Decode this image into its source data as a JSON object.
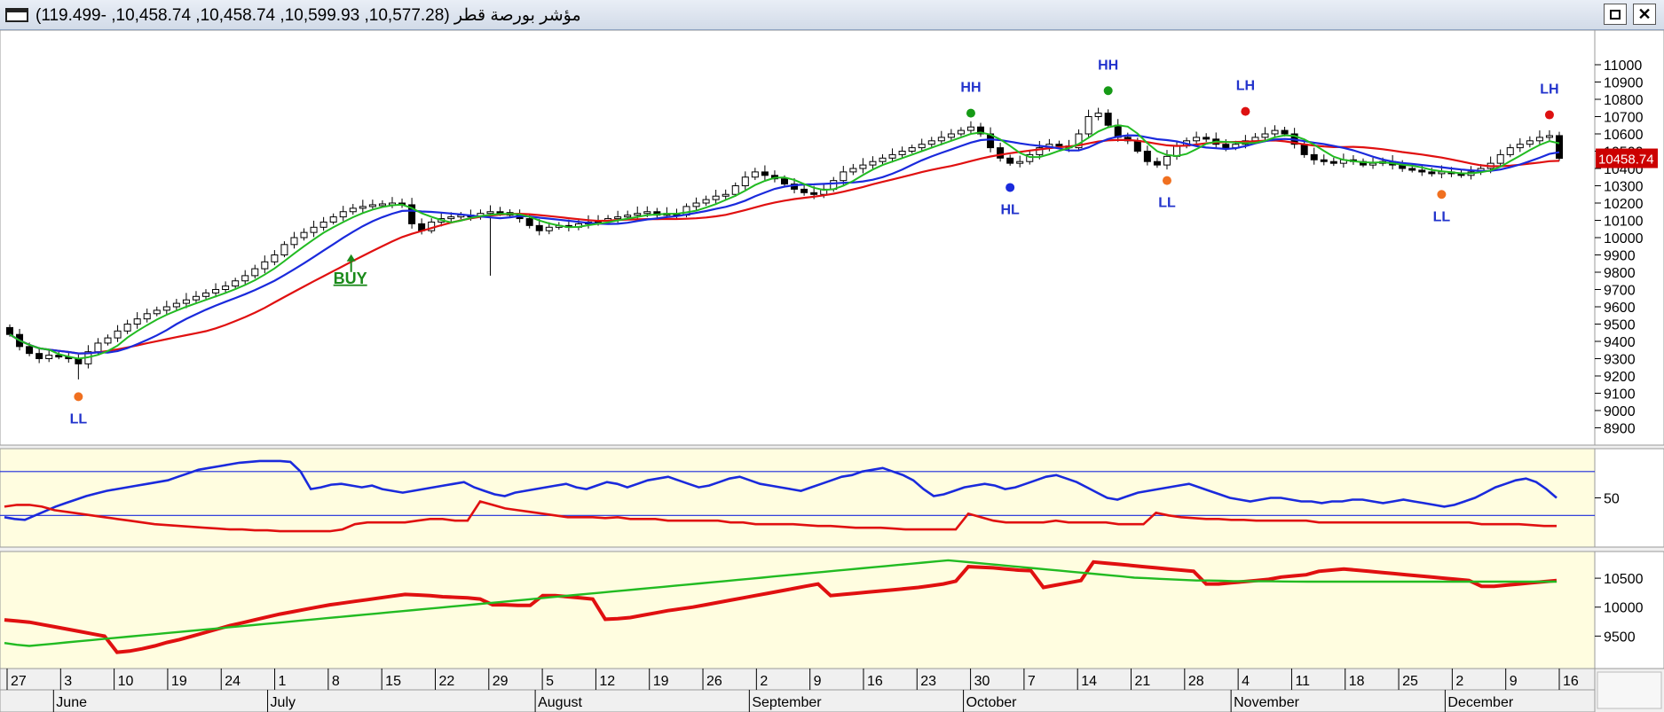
{
  "window": {
    "title": "مؤشر بورصة قطر (10,577.28, 10,599.93, 10,458.74, 10,458.74, -119.499)",
    "restore_label": "",
    "close_label": "✕"
  },
  "colors": {
    "price_panel_bg": "#ffffff",
    "indicator_panel_bg": "#fffde0",
    "ma_fast": "#22bb22",
    "ma_mid": "#1a2adc",
    "ma_slow": "#e01010",
    "label_blue": "#2233cc",
    "last_price_box": "#cc0000"
  },
  "chart_data": [
    {
      "type": "candlestick",
      "ylim": [
        8800,
        11200
      ],
      "yticks": [
        8900,
        9000,
        9100,
        9200,
        9300,
        9400,
        9500,
        9600,
        9700,
        9800,
        9900,
        10000,
        10100,
        10200,
        10300,
        10400,
        10500,
        10600,
        10700,
        10800,
        10900,
        11000
      ],
      "last_price_label": "10458.74",
      "last_price": 10458.74,
      "x_ticks": [
        "27",
        "3",
        "10",
        "19",
        "24",
        "1",
        "8",
        "15",
        "22",
        "29",
        "5",
        "12",
        "19",
        "26",
        "2",
        "9",
        "16",
        "23",
        "30",
        "7",
        "14",
        "21",
        "28",
        "4",
        "11",
        "18",
        "25",
        "2",
        "9",
        "16"
      ],
      "months": [
        "June",
        "July",
        "August",
        "September",
        "October",
        "November",
        "December"
      ],
      "close": [
        9440,
        9370,
        9330,
        9300,
        9320,
        9310,
        9300,
        9270,
        9340,
        9390,
        9420,
        9460,
        9500,
        9530,
        9560,
        9580,
        9600,
        9620,
        9640,
        9660,
        9680,
        9700,
        9720,
        9750,
        9780,
        9820,
        9860,
        9900,
        9960,
        10000,
        10030,
        10060,
        10090,
        10120,
        10150,
        10170,
        10180,
        10190,
        10195,
        10200,
        10190,
        10080,
        10040,
        10090,
        10110,
        10120,
        10130,
        10120,
        10140,
        10150,
        10145,
        10130,
        10110,
        10070,
        10040,
        10060,
        10070,
        10060,
        10080,
        10090,
        10100,
        10110,
        10120,
        10130,
        10140,
        10150,
        10130,
        10140,
        10130,
        10180,
        10200,
        10220,
        10240,
        10250,
        10300,
        10350,
        10380,
        10360,
        10340,
        10310,
        10280,
        10260,
        10250,
        10280,
        10330,
        10380,
        10400,
        10420,
        10440,
        10460,
        10480,
        10500,
        10520,
        10540,
        10560,
        10580,
        10600,
        10620,
        10640,
        10600,
        10520,
        10460,
        10430,
        10440,
        10480,
        10520,
        10540,
        10530,
        10520,
        10600,
        10700,
        10720,
        10650,
        10580,
        10560,
        10500,
        10440,
        10420,
        10470,
        10530,
        10560,
        10580,
        10570,
        10540,
        10520,
        10540,
        10560,
        10580,
        10600,
        10620,
        10600,
        10540,
        10480,
        10450,
        10440,
        10430,
        10450,
        10440,
        10420,
        10430,
        10440,
        10420,
        10400,
        10390,
        10380,
        10370,
        10380,
        10370,
        10360,
        10380,
        10400,
        10430,
        10480,
        10520,
        10540,
        10560,
        10580,
        10590,
        10458.74
      ],
      "annotations": [
        {
          "text": "LL",
          "kind": "low",
          "dot_color": "#f07020",
          "index": 7,
          "price": 9080
        },
        {
          "text": "BUY",
          "kind": "signal",
          "color": "#1a8a1a",
          "index": 33,
          "price": 9760
        },
        {
          "text": "HH",
          "kind": "high",
          "dot_color": "#169a16",
          "index": 98,
          "price": 10720
        },
        {
          "text": "HL",
          "kind": "low",
          "dot_color": "#1a2adc",
          "index": 102,
          "price": 10290
        },
        {
          "text": "HH",
          "kind": "high",
          "dot_color": "#169a16",
          "index": 112,
          "price": 10850
        },
        {
          "text": "LL",
          "kind": "low",
          "dot_color": "#f07020",
          "index": 118,
          "price": 10330
        },
        {
          "text": "LH",
          "kind": "high",
          "dot_color": "#dd1111",
          "index": 126,
          "price": 10730
        },
        {
          "text": "LL",
          "kind": "low",
          "dot_color": "#f07020",
          "index": 146,
          "price": 10250
        },
        {
          "text": "LH",
          "kind": "high",
          "dot_color": "#dd1111",
          "index": 157,
          "price": 10710
        }
      ]
    },
    {
      "type": "line",
      "ylim": [
        0,
        100
      ],
      "yticks": [
        50
      ],
      "hlines": [
        80,
        30
      ],
      "series": [
        {
          "color": "#1a2adc",
          "values": [
            28,
            26,
            25,
            30,
            35,
            40,
            44,
            48,
            52,
            55,
            58,
            60,
            62,
            64,
            66,
            68,
            70,
            74,
            78,
            82,
            84,
            86,
            88,
            90,
            91,
            92,
            92,
            92,
            91,
            80,
            60,
            62,
            65,
            66,
            64,
            62,
            64,
            60,
            58,
            56,
            58,
            60,
            62,
            64,
            66,
            68,
            62,
            58,
            54,
            52,
            56,
            58,
            60,
            62,
            64,
            66,
            62,
            60,
            64,
            68,
            66,
            62,
            66,
            70,
            72,
            74,
            70,
            66,
            62,
            64,
            68,
            72,
            74,
            70,
            66,
            64,
            62,
            60,
            58,
            62,
            66,
            70,
            74,
            76,
            80,
            82,
            84,
            80,
            76,
            70,
            60,
            52,
            54,
            58,
            62,
            64,
            66,
            64,
            60,
            62,
            66,
            70,
            74,
            76,
            72,
            68,
            62,
            56,
            50,
            48,
            52,
            56,
            58,
            60,
            62,
            64,
            66,
            62,
            58,
            54,
            50,
            48,
            46,
            48,
            50,
            50,
            48,
            46,
            46,
            44,
            46,
            46,
            48,
            48,
            46,
            44,
            46,
            48,
            46,
            44,
            42,
            40,
            42,
            46,
            50,
            56,
            62,
            66,
            70,
            72,
            68,
            60,
            50
          ]
        },
        {
          "color": "#e01010",
          "values": [
            40,
            42,
            42,
            40,
            36,
            34,
            32,
            30,
            28,
            26,
            24,
            22,
            20,
            19,
            18,
            17,
            16,
            15,
            14,
            14,
            13,
            13,
            12,
            12,
            12,
            12,
            12,
            14,
            20,
            22,
            22,
            22,
            22,
            24,
            26,
            26,
            24,
            24,
            46,
            42,
            38,
            36,
            34,
            32,
            30,
            28,
            28,
            28,
            27,
            28,
            26,
            26,
            26,
            24,
            24,
            24,
            24,
            24,
            22,
            22,
            20,
            20,
            20,
            20,
            19,
            18,
            18,
            17,
            16,
            16,
            16,
            15,
            14,
            14,
            14,
            14,
            14,
            32,
            28,
            24,
            22,
            22,
            22,
            22,
            24,
            22,
            22,
            22,
            22,
            20,
            20,
            20,
            33,
            30,
            28,
            27,
            26,
            26,
            25,
            25,
            24,
            24,
            24,
            24,
            24,
            22,
            22,
            22,
            22,
            22,
            22,
            22,
            22,
            22,
            22,
            22,
            22,
            22,
            20,
            20,
            20,
            20,
            19,
            18,
            18
          ]
        }
      ]
    },
    {
      "type": "line",
      "ylim": [
        9000,
        10900
      ],
      "yticks": [
        9500,
        10000,
        10500
      ],
      "series": [
        {
          "color": "#e01010",
          "values": [
            9780,
            9760,
            9740,
            9700,
            9660,
            9620,
            9580,
            9540,
            9500,
            9220,
            9240,
            9280,
            9330,
            9390,
            9440,
            9500,
            9560,
            9620,
            9680,
            9730,
            9780,
            9830,
            9880,
            9920,
            9960,
            10000,
            10040,
            10070,
            10100,
            10130,
            10160,
            10190,
            10220,
            10210,
            10200,
            10180,
            10170,
            10160,
            10140,
            10040,
            10040,
            10030,
            10030,
            10200,
            10200,
            10180,
            10160,
            10140,
            9790,
            9800,
            9820,
            9860,
            9900,
            9940,
            9970,
            10000,
            10040,
            10080,
            10120,
            10160,
            10200,
            10240,
            10280,
            10320,
            10360,
            10400,
            10200,
            10220,
            10240,
            10260,
            10280,
            10300,
            10320,
            10340,
            10370,
            10400,
            10450,
            10700,
            10690,
            10680,
            10660,
            10640,
            10630,
            10340,
            10380,
            10420,
            10460,
            10780,
            10760,
            10740,
            10720,
            10700,
            10680,
            10660,
            10640,
            10620,
            10400,
            10400,
            10420,
            10440,
            10460,
            10480,
            10520,
            10540,
            10560,
            10620,
            10640,
            10660,
            10640,
            10620,
            10600,
            10580,
            10560,
            10540,
            10520,
            10500,
            10480,
            10460,
            10360,
            10360,
            10380,
            10400,
            10420,
            10440,
            10460
          ]
        },
        {
          "color": "#22bb22",
          "values": [
            9380,
            9350,
            9330,
            9350,
            9370,
            9390,
            9410,
            9430,
            9450,
            9470,
            9490,
            9510,
            9530,
            9550,
            9570,
            9590,
            9610,
            9630,
            9650,
            9670,
            9690,
            9710,
            9730,
            9750,
            9770,
            9790,
            9810,
            9830,
            9850,
            9870,
            9890,
            9910,
            9930,
            9950,
            9970,
            9990,
            10010,
            10030,
            10050,
            10070,
            10090,
            10110,
            10130,
            10150,
            10170,
            10190,
            10210,
            10230,
            10250,
            10270,
            10290,
            10310,
            10330,
            10350,
            10370,
            10390,
            10410,
            10430,
            10450,
            10470,
            10490,
            10510,
            10530,
            10550,
            10570,
            10590,
            10610,
            10630,
            10650,
            10670,
            10690,
            10710,
            10730,
            10750,
            10770,
            10790,
            10810,
            10790,
            10770,
            10750,
            10730,
            10710,
            10690,
            10670,
            10650,
            10630,
            10610,
            10590,
            10570,
            10550,
            10530,
            10510,
            10500,
            10490,
            10480,
            10470,
            10460,
            10460,
            10455,
            10450,
            10450,
            10448,
            10446,
            10444,
            10442,
            10440,
            10440,
            10440,
            10440,
            10440,
            10440,
            10440,
            10440,
            10440,
            10440,
            10440,
            10440,
            10440,
            10440,
            10440,
            10440,
            10440,
            10440,
            10440,
            10440,
            10440
          ]
        }
      ]
    }
  ]
}
